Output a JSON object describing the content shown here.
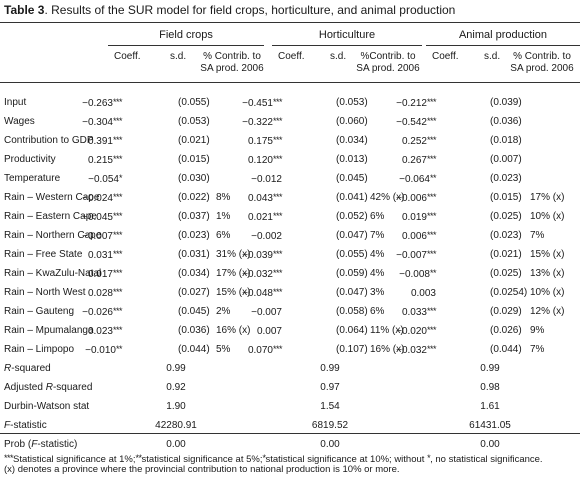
{
  "caption": {
    "label": "Table 3",
    "text": ". Results of the SUR model for field crops, horticulture, and animal production"
  },
  "groups": [
    "Field crops",
    "Horticulture",
    "Animal production"
  ],
  "subheads": {
    "coef": "Coeff.",
    "sd": "s.d.",
    "pct_line1": "% Contrib. to",
    "pct_line1_h": "%Contrib. to",
    "pct_line2": "SA prod. 2006"
  },
  "rows": [
    {
      "label": "Input",
      "cells": [
        [
          "−0.263",
          "***",
          "(0.055)",
          ""
        ],
        [
          "−0.451",
          "***",
          "(0.053)",
          ""
        ],
        [
          "−0.212",
          "***",
          "(0.039)",
          ""
        ]
      ]
    },
    {
      "label": "Wages",
      "cells": [
        [
          "−0.304",
          "***",
          "(0.053)",
          ""
        ],
        [
          "−0.322",
          "***",
          "(0.060)",
          ""
        ],
        [
          "−0.542",
          "***",
          "(0.036)",
          ""
        ]
      ]
    },
    {
      "label": "Contribution to GDP",
      "cells": [
        [
          "0.391",
          "***",
          "(0.021)",
          ""
        ],
        [
          "0.175",
          "***",
          "(0.034)",
          ""
        ],
        [
          "0.252",
          "***",
          "(0.018)",
          ""
        ]
      ]
    },
    {
      "label": "Productivity",
      "cells": [
        [
          "0.215",
          "***",
          "(0.015)",
          ""
        ],
        [
          "0.120",
          "***",
          "(0.013)",
          ""
        ],
        [
          "0.267",
          "***",
          "(0.007)",
          ""
        ]
      ]
    },
    {
      "label": "Temperature",
      "cells": [
        [
          "−0.054",
          "*",
          "(0.030)",
          ""
        ],
        [
          "−0.012",
          "",
          "(0.045)",
          ""
        ],
        [
          "−0.064",
          "**",
          "(0.023)",
          ""
        ]
      ]
    },
    {
      "label": "Rain – Western Cape",
      "cells": [
        [
          "−0.024",
          "***",
          "(0.022)",
          "8%"
        ],
        [
          "0.043",
          "***",
          "(0.041)",
          "42% (x)"
        ],
        [
          "−0.006",
          "***",
          "(0.015)",
          "17% (x)"
        ]
      ]
    },
    {
      "label": "Rain – Eastern Cape",
      "cells": [
        [
          "−0.045",
          "***",
          "(0.037)",
          "1%"
        ],
        [
          "0.021",
          "***",
          "(0.052)",
          "6%"
        ],
        [
          "0.019",
          "***",
          "(0.025)",
          "10% (x)"
        ]
      ]
    },
    {
      "label": "Rain – Northern Cape",
      "cells": [
        [
          "−0.007",
          "***",
          "(0.023)",
          "6%"
        ],
        [
          "−0.002",
          "",
          "(0.047)",
          "7%"
        ],
        [
          "0.006",
          "***",
          "(0.023)",
          "7%"
        ]
      ]
    },
    {
      "label": "Rain – Free State",
      "cells": [
        [
          "0.031",
          "***",
          "(0.031)",
          "31% (x)"
        ],
        [
          "−0.039",
          "***",
          "(0.055)",
          "4%"
        ],
        [
          "−0.007",
          "***",
          "(0.021)",
          "15% (x)"
        ]
      ]
    },
    {
      "label": "Rain – KwaZulu-Natal",
      "cells": [
        [
          "0.017",
          "***",
          "(0.034)",
          "17% (x)"
        ],
        [
          "−0.032",
          "***",
          "(0.059)",
          "4%"
        ],
        [
          "−0.008",
          "**",
          "(0.025)",
          "13% (x)"
        ]
      ]
    },
    {
      "label": "Rain – North West",
      "cells": [
        [
          "0.028",
          "***",
          "(0.027)",
          "15% (x)"
        ],
        [
          "−0.048",
          "***",
          "(0.047)",
          "3%"
        ],
        [
          "0.003",
          "",
          "(0.0254)",
          "10% (x)"
        ]
      ]
    },
    {
      "label": "Rain – Gauteng",
      "cells": [
        [
          "−0.026",
          "***",
          "(0.045)",
          "2%"
        ],
        [
          "−0.007",
          "",
          "(0.058)",
          "6%"
        ],
        [
          "0.033",
          "***",
          "(0.029)",
          "12% (x)"
        ]
      ]
    },
    {
      "label": "Rain – Mpumalanga",
      "cells": [
        [
          "0.023",
          "***",
          "(0.036)",
          "16% (x)"
        ],
        [
          "0.007",
          "",
          "(0.064)",
          "11% (x)"
        ],
        [
          "−0.020",
          "***",
          "(0.026)",
          "9%"
        ]
      ]
    },
    {
      "label": "Rain – Limpopo",
      "cells": [
        [
          "−0.010",
          "**",
          "(0.044)",
          "5%"
        ],
        [
          "0.070",
          "***",
          "(0.107)",
          "16% (x)"
        ],
        [
          "−0.032",
          "***",
          "(0.044)",
          "7%"
        ]
      ]
    }
  ],
  "stats": [
    {
      "label_pre": "",
      "label_it": "R",
      "label_post": "-squared",
      "values": [
        "0.99",
        "0.99",
        "0.99"
      ]
    },
    {
      "label_pre": "Adjusted ",
      "label_it": "R",
      "label_post": "-squared",
      "values": [
        "0.92",
        "0.97",
        "0.98"
      ]
    },
    {
      "label_pre": "Durbin-Watson stat",
      "label_it": "",
      "label_post": "",
      "values": [
        "1.90",
        "1.54",
        "1.61"
      ]
    },
    {
      "label_pre": "",
      "label_it": "F",
      "label_post": "-statistic",
      "values": [
        "42280.91",
        "6819.52",
        "61431.05"
      ]
    },
    {
      "label_pre": "Prob (",
      "label_it": "F",
      "label_post": "-statistic)",
      "values": [
        "0.00",
        "0.00",
        "0.00"
      ]
    }
  ],
  "footnote": {
    "s3": "***",
    "t3": "Statistical significance at 1%;",
    "s2": "**",
    "t2": "statistical significance at 5%;",
    "s1": "*",
    "t1": "statistical significance at 10%; without ",
    "s0": "*",
    "t0": ", no statistical significance.",
    "line2": "(x) denotes a province where the provincial contribution to national production is 10% or more."
  }
}
